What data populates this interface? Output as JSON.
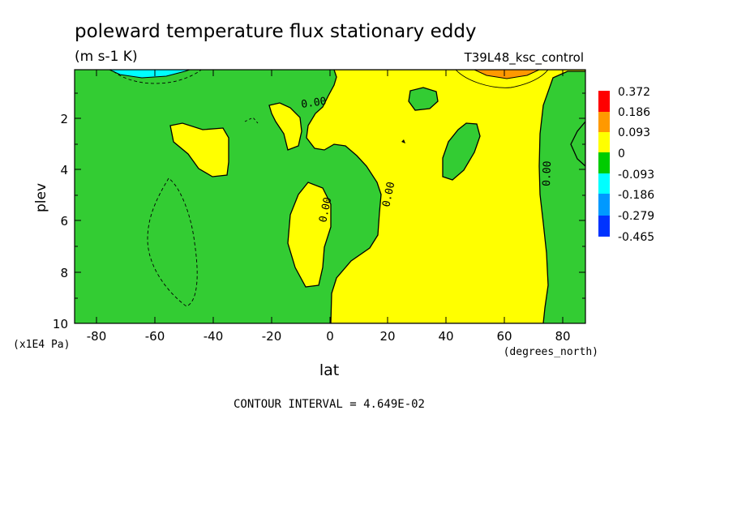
{
  "chart_data": {
    "type": "heatmap",
    "title": "poleward temperature flux stationary eddy",
    "units": "(m s-1 K)",
    "run_label": "T39L48_ksc_control",
    "xlabel": "lat",
    "x_units": "(degrees_north)",
    "ylabel": "plev",
    "y_units": "(x1E4 Pa)",
    "xlim": [
      -88,
      88
    ],
    "ylim": [
      10,
      0.1
    ],
    "x_ticks": [
      "-80",
      "-60",
      "-40",
      "-20",
      "0",
      "20",
      "40",
      "60",
      "80"
    ],
    "y_ticks": [
      "2",
      "4",
      "6",
      "8",
      "10"
    ],
    "contour_label": "0.00",
    "contour_interval_text": "CONTOUR INTERVAL = 4.649E-02",
    "legend": {
      "levels": [
        "0.372",
        "0.186",
        "0.093",
        "0",
        "-0.093",
        "-0.186",
        "-0.279",
        "-0.465"
      ],
      "colors": [
        "#ff0000",
        "#ff9900",
        "#ffff00",
        "#00cc00",
        "#00ffff",
        "#0099ff",
        "#0033ff"
      ]
    },
    "fill_colors": {
      "positive": "#ffff00",
      "negative": "#33cc33",
      "strong_positive": "#ff9900",
      "strong_negative": "#00ffff"
    }
  }
}
